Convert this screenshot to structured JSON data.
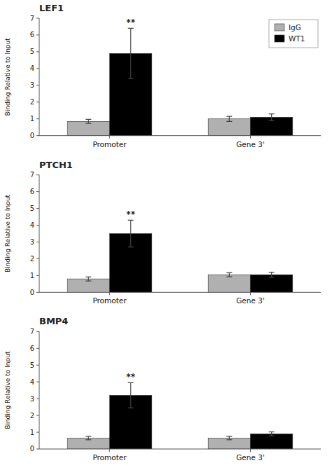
{
  "chart_data": [
    {
      "type": "bar",
      "title": "LEF1",
      "ylabel": "Binding Relative to Input",
      "categories": [
        "Promoter",
        "Gene 3'"
      ],
      "series": [
        {
          "name": "IgG",
          "color": "#b0b0b0",
          "values": [
            0.85,
            1.0
          ],
          "errors": [
            0.12,
            0.15
          ]
        },
        {
          "name": "WT1",
          "color": "#000000",
          "values": [
            4.9,
            1.1
          ],
          "errors": [
            1.5,
            0.2
          ]
        }
      ],
      "ylim": [
        0,
        7
      ],
      "yticks": [
        0,
        1,
        2,
        3,
        4,
        5,
        6,
        7
      ],
      "grid": false,
      "legend": "upper right",
      "annotations": [
        {
          "text": "**",
          "series": "WT1",
          "category": "Promoter"
        }
      ]
    },
    {
      "type": "bar",
      "title": "PTCH1",
      "ylabel": "Binding Relative to Input",
      "categories": [
        "Promoter",
        "Gene 3'"
      ],
      "series": [
        {
          "name": "IgG",
          "color": "#b0b0b0",
          "values": [
            0.8,
            1.05
          ],
          "errors": [
            0.12,
            0.12
          ]
        },
        {
          "name": "WT1",
          "color": "#000000",
          "values": [
            3.5,
            1.05
          ],
          "errors": [
            0.8,
            0.15
          ]
        }
      ],
      "ylim": [
        0,
        7
      ],
      "yticks": [
        0,
        1,
        2,
        3,
        4,
        5,
        6,
        7
      ],
      "grid": false,
      "annotations": [
        {
          "text": "**",
          "series": "WT1",
          "category": "Promoter"
        }
      ]
    },
    {
      "type": "bar",
      "title": "BMP4",
      "ylabel": "Binding Relative to Input",
      "categories": [
        "Promoter",
        "Gene 3'"
      ],
      "series": [
        {
          "name": "IgG",
          "color": "#b0b0b0",
          "values": [
            0.65,
            0.65
          ],
          "errors": [
            0.1,
            0.1
          ]
        },
        {
          "name": "WT1",
          "color": "#000000",
          "values": [
            3.2,
            0.9
          ],
          "errors": [
            0.75,
            0.12
          ]
        }
      ],
      "ylim": [
        0,
        7
      ],
      "yticks": [
        0,
        1,
        2,
        3,
        4,
        5,
        6,
        7
      ],
      "grid": false,
      "annotations": [
        {
          "text": "**",
          "series": "WT1",
          "category": "Promoter"
        }
      ]
    }
  ]
}
